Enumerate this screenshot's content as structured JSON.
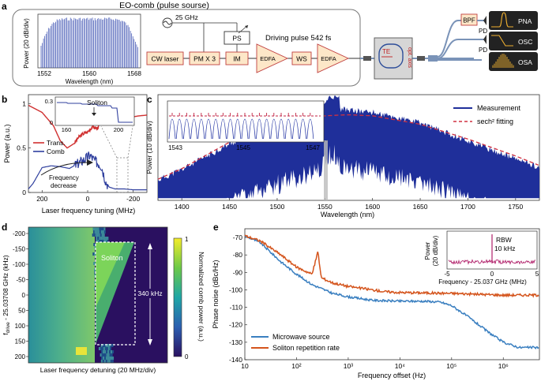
{
  "panel_labels": {
    "a": "a",
    "b": "b",
    "c": "c",
    "d": "d",
    "e": "e"
  },
  "panel_a": {
    "box_title": "EO-comb (pulse sourse)",
    "inset_ylabel": "Power (20 dB/div)",
    "inset_xlabel": "Wavelength (nm)",
    "inset_xticks": [
      "1552",
      "1560",
      "1568"
    ],
    "rf_label": "25 GHz",
    "blocks": [
      "CW laser",
      "PM X 3",
      "IM",
      "PS",
      "EDFA",
      "WS",
      "EDFA"
    ],
    "driving_pulse": "Driving pulse 542 fs",
    "te_label": "TE",
    "opt_axis_label": "opt. axis",
    "filter_label": "BPF",
    "pd_labels": [
      "PD",
      "PD"
    ],
    "instruments": [
      "PNA",
      "OSC",
      "OSA"
    ]
  },
  "panel_b": {
    "ylabel": "Power (a.u.)",
    "xlabel": "Laser frequency tuning (MHz)",
    "xticks": [
      "200",
      "0",
      "-200"
    ],
    "yticks": [
      "0",
      "0.5",
      "1"
    ],
    "legend": [
      "Trans.",
      "Comb"
    ],
    "inset_label": "Soliton",
    "inset_xticks": [
      "160",
      "200"
    ],
    "inset_yticks": [
      "0",
      "0.3"
    ],
    "arrow_label_1": "Frequency",
    "arrow_label_2": "decrease",
    "colors": {
      "trans": "#d03030",
      "comb": "#2f3f9e"
    }
  },
  "panel_c": {
    "ylabel": "Power (10 dB/div)",
    "xlabel": "Wavelength (nm)",
    "xticks": [
      "1400",
      "1450",
      "1500",
      "1550",
      "1600",
      "1650",
      "1700",
      "1750"
    ],
    "legend": [
      "Measurement",
      "sech² fitting"
    ],
    "inset_xticks": [
      "1543",
      "1545",
      "1547"
    ],
    "colors": {
      "measurement": "#1f2f9a",
      "fit": "#d03040"
    }
  },
  "panel_d": {
    "ylabel": "f_drive - 25.03708 GHz (kHz)",
    "xlabel": "Laser frequency detuning (20 MHz/div)",
    "yticks": [
      "-200",
      "-150",
      "-100",
      "-50",
      "0",
      "50",
      "100",
      "150",
      "200"
    ],
    "colorbar_label": "Normalized comb power (a.u.)",
    "colorbar_ticks": [
      "1",
      "0"
    ],
    "soliton_label": "Soliton",
    "span_label": "340 kHz"
  },
  "panel_e": {
    "ylabel": "Phase noise (dBc/Hz)",
    "xlabel": "Frequency offset (Hz)",
    "yticks": [
      "-70",
      "-80",
      "-90",
      "-100",
      "-110",
      "-120",
      "-130",
      "-140"
    ],
    "xticks": [
      "10",
      "10²",
      "10³",
      "10⁴",
      "10⁵",
      "10⁶"
    ],
    "legend": [
      "Microwave source",
      "Soliton repetition rate"
    ],
    "inset_ylabel_1": "Power",
    "inset_ylabel_2": "(20 dB/div)",
    "inset_xlabel": "Frequency - 25.037 GHz (MHz)",
    "inset_xticks": [
      "-5",
      "0",
      "5"
    ],
    "rbw_1": "RBW",
    "rbw_2": "10 kHz",
    "colors": {
      "microwave": "#3a7fc0",
      "soliton": "#d4541c",
      "inset": "#b0206a"
    }
  },
  "chart_data": [
    {
      "type": "line",
      "panel": "b",
      "xlabel": "Laser frequency tuning (MHz)",
      "ylabel": "Power (a.u.)",
      "xlim": [
        260,
        -260
      ],
      "ylim": [
        0,
        1.1
      ],
      "series": [
        {
          "name": "Trans.",
          "x": [
            260,
            200,
            150,
            120,
            90,
            60,
            40,
            20,
            0,
            -20,
            -40,
            -60,
            -100,
            -140,
            -180,
            -220,
            -260
          ],
          "values": [
            0.98,
            0.9,
            0.75,
            0.58,
            0.5,
            0.55,
            0.62,
            0.66,
            0.68,
            0.74,
            0.72,
            0.78,
            0.8,
            0.82,
            0.84,
            0.86,
            0.87
          ]
        },
        {
          "name": "Comb",
          "x": [
            260,
            240,
            200,
            160,
            120,
            80,
            40,
            10,
            -10,
            -30,
            -60,
            -80,
            -90,
            -95,
            -120,
            -160,
            -200,
            -260
          ],
          "values": [
            0.04,
            0.1,
            0.28,
            0.3,
            0.29,
            0.27,
            0.33,
            0.38,
            0.42,
            0.36,
            0.3,
            0.12,
            0.08,
            0.06,
            0.04,
            0.04,
            0.03,
            0.03
          ]
        }
      ]
    },
    {
      "type": "line",
      "panel": "c",
      "xlabel": "Wavelength (nm)",
      "ylabel": "Power (10 dB/div)",
      "xlim": [
        1375,
        1775
      ],
      "series": [
        {
          "name": "Measurement",
          "x": [
            1375,
            1400,
            1450,
            1500,
            1540,
            1555,
            1565,
            1600,
            1650,
            1700,
            1750,
            1775
          ],
          "values": [
            0.18,
            0.28,
            0.52,
            0.7,
            0.8,
            0.95,
            0.85,
            0.82,
            0.72,
            0.55,
            0.38,
            0.3
          ]
        },
        {
          "name": "sech² fitting",
          "x": [
            1375,
            1400,
            1450,
            1500,
            1550,
            1575,
            1600,
            1650,
            1700,
            1750,
            1775
          ],
          "values": [
            0.2,
            0.3,
            0.55,
            0.72,
            0.8,
            0.81,
            0.8,
            0.72,
            0.58,
            0.42,
            0.33
          ]
        }
      ]
    },
    {
      "type": "heatmap",
      "panel": "d",
      "xlabel": "Laser frequency detuning (20 MHz/div)",
      "ylabel": "f_drive - 25.03708 GHz (kHz)",
      "ylim": [
        -210,
        210
      ],
      "soliton_span_khz": 340
    },
    {
      "type": "line",
      "panel": "e",
      "xlabel": "Frequency offset (Hz)",
      "ylabel": "Phase noise (dBc/Hz)",
      "ylim": [
        -140,
        -65
      ],
      "xscale": "log",
      "xlim": [
        10,
        5000000
      ],
      "series": [
        {
          "name": "Microwave source",
          "x": [
            10,
            20,
            50,
            100,
            200,
            500,
            1000,
            3000,
            10000,
            30000,
            60000,
            100000,
            200000,
            500000,
            1000000,
            2000000,
            5000000
          ],
          "values": [
            -69,
            -73,
            -84,
            -91,
            -97,
            -102,
            -104,
            -106,
            -106.5,
            -106.5,
            -107,
            -109,
            -115,
            -124,
            -130,
            -133,
            -133
          ]
        },
        {
          "name": "Soliton repetition rate",
          "x": [
            10,
            20,
            50,
            100,
            200,
            260,
            300,
            500,
            1000,
            5000,
            10000,
            100000,
            1000000,
            5000000
          ],
          "values": [
            -69,
            -72,
            -80,
            -87,
            -91,
            -78,
            -93,
            -96,
            -98,
            -101,
            -101.5,
            -102,
            -103,
            -103
          ]
        }
      ]
    }
  ]
}
